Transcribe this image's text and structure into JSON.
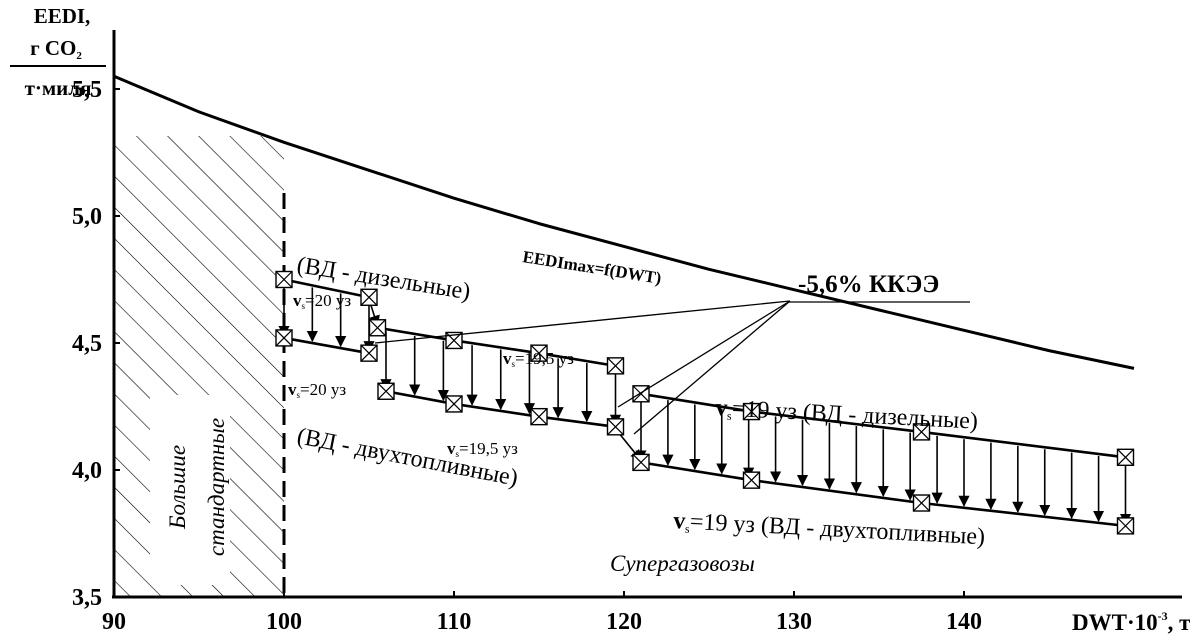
{
  "chart_data": {
    "type": "line",
    "ylabel_lines": [
      "EEDI,",
      "г CO",
      "т·миля"
    ],
    "ylabel_sub": "2",
    "xlabel_main": "DWT·10",
    "xlabel_exp": "-3",
    "xlabel_unit": ", т",
    "xlim": [
      90,
      150
    ],
    "ylim": [
      3.5,
      5.75
    ],
    "x_ticks": [
      90,
      100,
      110,
      120,
      130,
      140
    ],
    "x_tick_labels": [
      "90",
      "100",
      "110",
      "120",
      "130",
      "140"
    ],
    "y_ticks": [
      3.5,
      4.0,
      4.5,
      5.0,
      5.5
    ],
    "y_tick_labels": [
      "3,5",
      "4,0",
      "4,5",
      "5,0",
      "5,5"
    ],
    "grid": false,
    "series": [
      {
        "name": "EEDImax=f(DWT)",
        "x": [
          90,
          95,
          100,
          105,
          110,
          115,
          120,
          125,
          130,
          135,
          140,
          145,
          150
        ],
        "y": [
          5.55,
          5.41,
          5.29,
          5.18,
          5.07,
          4.97,
          4.88,
          4.79,
          4.71,
          4.63,
          4.55,
          4.47,
          4.4
        ]
      },
      {
        "x": [
          100,
          105
        ],
        "y": [
          4.75,
          4.68
        ]
      },
      {
        "x": [
          100,
          105
        ],
        "y": [
          4.52,
          4.46
        ]
      },
      {
        "x": [
          105.5,
          110,
          115,
          119.5
        ],
        "y": [
          4.56,
          4.51,
          4.46,
          4.41
        ]
      },
      {
        "x": [
          106,
          110,
          115,
          119.5
        ],
        "y": [
          4.31,
          4.26,
          4.21,
          4.17
        ]
      },
      {
        "x": [
          121,
          127.5,
          137.5,
          149.5
        ],
        "y": [
          4.3,
          4.23,
          4.15,
          4.05
        ]
      },
      {
        "x": [
          121,
          127.5,
          137.5,
          149.5
        ],
        "y": [
          4.03,
          3.96,
          3.87,
          3.78
        ]
      }
    ],
    "annotations": {
      "hatch_label_1": "Большие",
      "hatch_label_2": "стандартные",
      "vd_diesel_1": "(ВД - дизельные)",
      "v20_top_pre": "v",
      "v20_top_sub": "s",
      "v20_top_post": "=20 уз",
      "v20_bot_pre": "v",
      "v20_bot_sub": "s",
      "v20_bot_post": "=20 уз",
      "vd_dual_1": "(ВД - двухтопливные)",
      "v195_top_pre": "v",
      "v195_top_sub": "s",
      "v195_top_post": "=19,5 уз",
      "v195_bot_pre": "v",
      "v195_bot_sub": "s",
      "v195_bot_post": "=19,5 уз",
      "v19_top_pre": "v",
      "v19_top_sub": "s",
      "v19_top_post": "=19 уз (ВД - дизельные)",
      "v19_bot_pre": "v",
      "v19_bot_sub": "s",
      "v19_bot_post": "=19 уз  (ВД - двухтопливные)",
      "kkee": "-5,6% ККЭЭ",
      "supergas": "Супергазовозы"
    }
  }
}
